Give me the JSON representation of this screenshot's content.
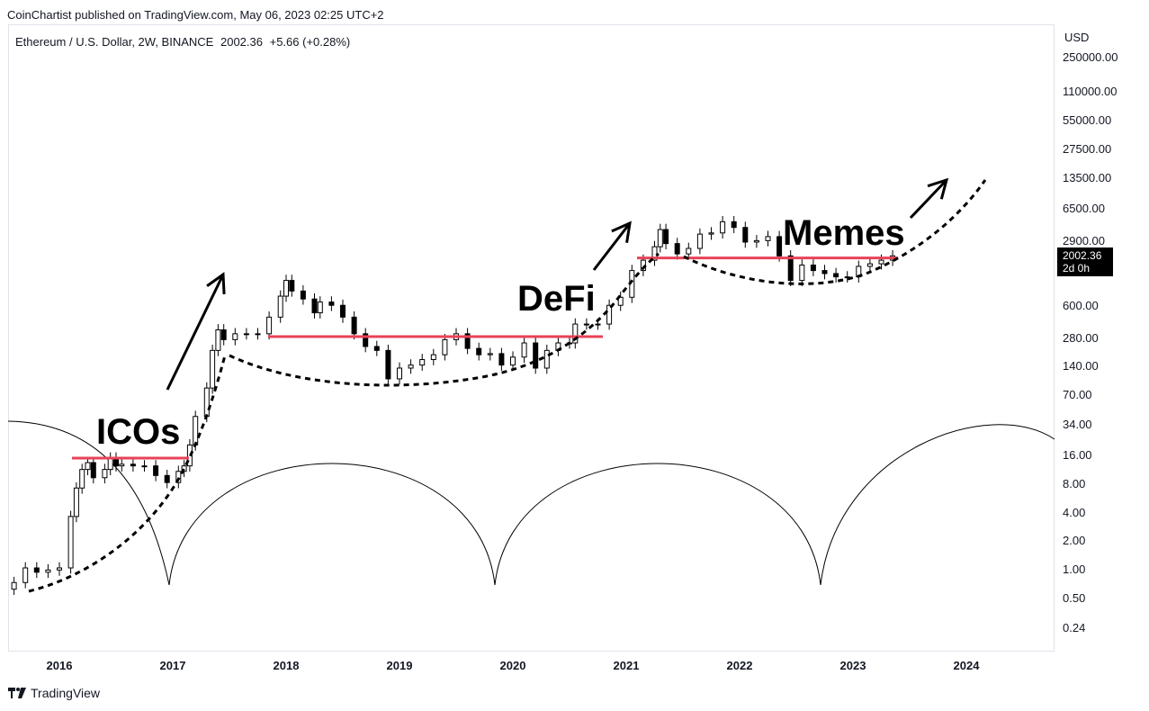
{
  "header": {
    "published": "CoinChartist published on TradingView.com, May 06, 2023 02:25 UTC+2"
  },
  "symbol": {
    "name": "Ethereum / U.S. Dollar, 2W, BINANCE",
    "price": "2002.36",
    "change": "+5.66 (+0.28%)"
  },
  "price_tag": {
    "price": "2002.36",
    "countdown": "2d 0h"
  },
  "footer": {
    "brand": "TradingView"
  },
  "colors": {
    "accent_line": "#e84357",
    "candle": "#000000",
    "grid_border": "#e0e3eb"
  },
  "chart_data": {
    "type": "candlestick",
    "yscale": "log",
    "currency_label": "USD",
    "y_ticks": [
      "250000.00",
      "110000.00",
      "55000.00",
      "27500.00",
      "13500.00",
      "6500.00",
      "2900.00",
      "600.00",
      "280.00",
      "140.00",
      "70.00",
      "34.00",
      "16.00",
      "8.00",
      "4.00",
      "2.00",
      "1.00",
      "0.50",
      "0.24"
    ],
    "x_ticks": [
      "2016",
      "2017",
      "2018",
      "2019",
      "2020",
      "2021",
      "2022",
      "2023",
      "2024"
    ],
    "annotations": [
      "ICOs",
      "DeFi",
      "Memes"
    ],
    "close_series": [
      {
        "x": 2015.6,
        "close": 0.7
      },
      {
        "x": 2015.7,
        "close": 1.0
      },
      {
        "x": 2015.8,
        "close": 0.9
      },
      {
        "x": 2015.9,
        "close": 0.95
      },
      {
        "x": 2016.0,
        "close": 1.0
      },
      {
        "x": 2016.1,
        "close": 3.5
      },
      {
        "x": 2016.15,
        "close": 7.0
      },
      {
        "x": 2016.2,
        "close": 11.0
      },
      {
        "x": 2016.25,
        "close": 13.0
      },
      {
        "x": 2016.3,
        "close": 9.0
      },
      {
        "x": 2016.4,
        "close": 11.0
      },
      {
        "x": 2016.45,
        "close": 14.5
      },
      {
        "x": 2016.5,
        "close": 12.0
      },
      {
        "x": 2016.55,
        "close": 12.5
      },
      {
        "x": 2016.65,
        "close": 12.0
      },
      {
        "x": 2016.75,
        "close": 12.0
      },
      {
        "x": 2016.85,
        "close": 9.5
      },
      {
        "x": 2016.95,
        "close": 8.0
      },
      {
        "x": 2017.05,
        "close": 10.5
      },
      {
        "x": 2017.1,
        "close": 12.0
      },
      {
        "x": 2017.15,
        "close": 20.0
      },
      {
        "x": 2017.2,
        "close": 40.0
      },
      {
        "x": 2017.3,
        "close": 80.0
      },
      {
        "x": 2017.35,
        "close": 200.0
      },
      {
        "x": 2017.4,
        "close": 330.0
      },
      {
        "x": 2017.45,
        "close": 260.0
      },
      {
        "x": 2017.55,
        "close": 300.0
      },
      {
        "x": 2017.65,
        "close": 300.0
      },
      {
        "x": 2017.75,
        "close": 300.0
      },
      {
        "x": 2017.85,
        "close": 450.0
      },
      {
        "x": 2017.95,
        "close": 750.0
      },
      {
        "x": 2018.0,
        "close": 1100.0
      },
      {
        "x": 2018.05,
        "close": 850.0
      },
      {
        "x": 2018.15,
        "close": 700.0
      },
      {
        "x": 2018.25,
        "close": 500.0
      },
      {
        "x": 2018.3,
        "close": 650.0
      },
      {
        "x": 2018.4,
        "close": 600.0
      },
      {
        "x": 2018.5,
        "close": 450.0
      },
      {
        "x": 2018.6,
        "close": 300.0
      },
      {
        "x": 2018.7,
        "close": 220.0
      },
      {
        "x": 2018.8,
        "close": 200.0
      },
      {
        "x": 2018.9,
        "close": 100.0
      },
      {
        "x": 2019.0,
        "close": 130.0
      },
      {
        "x": 2019.1,
        "close": 140.0
      },
      {
        "x": 2019.2,
        "close": 160.0
      },
      {
        "x": 2019.3,
        "close": 180.0
      },
      {
        "x": 2019.4,
        "close": 260.0
      },
      {
        "x": 2019.5,
        "close": 300.0
      },
      {
        "x": 2019.6,
        "close": 210.0
      },
      {
        "x": 2019.7,
        "close": 180.0
      },
      {
        "x": 2019.8,
        "close": 185.0
      },
      {
        "x": 2019.9,
        "close": 140.0
      },
      {
        "x": 2020.0,
        "close": 170.0
      },
      {
        "x": 2020.1,
        "close": 240.0
      },
      {
        "x": 2020.2,
        "close": 130.0
      },
      {
        "x": 2020.3,
        "close": 200.0
      },
      {
        "x": 2020.4,
        "close": 240.0
      },
      {
        "x": 2020.5,
        "close": 240.0
      },
      {
        "x": 2020.55,
        "close": 380.0
      },
      {
        "x": 2020.65,
        "close": 380.0
      },
      {
        "x": 2020.75,
        "close": 380.0
      },
      {
        "x": 2020.85,
        "close": 600.0
      },
      {
        "x": 2020.95,
        "close": 730.0
      },
      {
        "x": 2021.05,
        "close": 1400.0
      },
      {
        "x": 2021.15,
        "close": 1800.0
      },
      {
        "x": 2021.25,
        "close": 2500.0
      },
      {
        "x": 2021.3,
        "close": 3800.0
      },
      {
        "x": 2021.35,
        "close": 2700.0
      },
      {
        "x": 2021.45,
        "close": 2100.0
      },
      {
        "x": 2021.55,
        "close": 2400.0
      },
      {
        "x": 2021.65,
        "close": 3400.0
      },
      {
        "x": 2021.75,
        "close": 3500.0
      },
      {
        "x": 2021.85,
        "close": 4600.0
      },
      {
        "x": 2021.95,
        "close": 4000.0
      },
      {
        "x": 2022.05,
        "close": 2800.0
      },
      {
        "x": 2022.15,
        "close": 2900.0
      },
      {
        "x": 2022.25,
        "close": 3200.0
      },
      {
        "x": 2022.35,
        "close": 2000.0
      },
      {
        "x": 2022.45,
        "close": 1100.0
      },
      {
        "x": 2022.55,
        "close": 1600.0
      },
      {
        "x": 2022.65,
        "close": 1400.0
      },
      {
        "x": 2022.75,
        "close": 1300.0
      },
      {
        "x": 2022.85,
        "close": 1200.0
      },
      {
        "x": 2022.95,
        "close": 1200.0
      },
      {
        "x": 2023.05,
        "close": 1550.0
      },
      {
        "x": 2023.15,
        "close": 1650.0
      },
      {
        "x": 2023.25,
        "close": 1800.0
      },
      {
        "x": 2023.35,
        "close": 2002.36
      }
    ]
  }
}
